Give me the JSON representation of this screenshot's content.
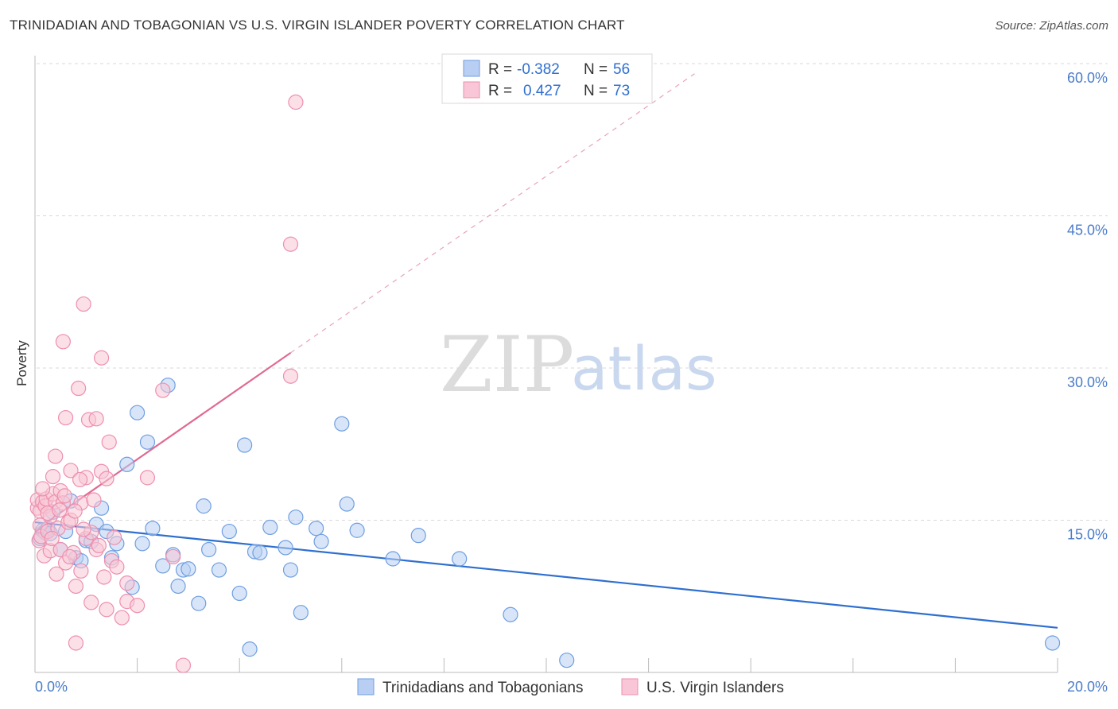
{
  "title": "TRINIDADIAN AND TOBAGONIAN VS U.S. VIRGIN ISLANDER POVERTY CORRELATION CHART",
  "source": "Source: ZipAtlas.com",
  "watermark": {
    "part1": "ZIP",
    "part2": "atlas"
  },
  "chart_data": {
    "type": "scatter",
    "ylabel": "Poverty",
    "xlim": [
      0,
      20
    ],
    "ylim": [
      0,
      60
    ],
    "y_ticks": [
      {
        "value": 15,
        "label": "15.0%"
      },
      {
        "value": 30,
        "label": "30.0%"
      },
      {
        "value": 45,
        "label": "45.0%"
      },
      {
        "value": 60,
        "label": "60.0%"
      }
    ],
    "x_tick_labels": {
      "min": "0.0%",
      "max": "20.0%"
    },
    "grid": true,
    "legend": {
      "rows": [
        {
          "r_label": "R =",
          "r_value": "-0.382",
          "n_label": "N =",
          "n_value": "56"
        },
        {
          "r_label": "R =",
          "r_value": "0.427",
          "n_label": "N =",
          "n_value": "73"
        }
      ]
    },
    "series": [
      {
        "name": "Trinidadians and Tobagonians",
        "color": "#6f9ee0",
        "fill": "#b8cff3",
        "trend": {
          "x0": 0,
          "y0": 14.8,
          "x1": 20,
          "y1": 4.4,
          "color": "#2f6fd0"
        },
        "points": [
          [
            0.1,
            13.2
          ],
          [
            0.15,
            14.0
          ],
          [
            0.2,
            13.8
          ],
          [
            0.25,
            14.2
          ],
          [
            0.3,
            13.7
          ],
          [
            0.35,
            15.8
          ],
          [
            0.5,
            12.1
          ],
          [
            0.6,
            13.9
          ],
          [
            0.7,
            16.9
          ],
          [
            0.8,
            11.3
          ],
          [
            0.9,
            11.0
          ],
          [
            1.0,
            13.0
          ],
          [
            1.1,
            12.9
          ],
          [
            1.2,
            14.6
          ],
          [
            1.3,
            16.2
          ],
          [
            1.4,
            13.9
          ],
          [
            1.5,
            11.3
          ],
          [
            1.6,
            12.7
          ],
          [
            1.8,
            20.5
          ],
          [
            1.9,
            8.4
          ],
          [
            2.0,
            25.6
          ],
          [
            2.1,
            12.7
          ],
          [
            2.2,
            22.7
          ],
          [
            2.3,
            14.2
          ],
          [
            2.5,
            10.5
          ],
          [
            2.6,
            28.3
          ],
          [
            2.7,
            11.6
          ],
          [
            2.8,
            8.5
          ],
          [
            2.9,
            10.1
          ],
          [
            3.0,
            10.2
          ],
          [
            3.2,
            6.8
          ],
          [
            3.3,
            16.4
          ],
          [
            3.4,
            12.1
          ],
          [
            3.6,
            10.1
          ],
          [
            3.8,
            13.9
          ],
          [
            4.0,
            7.8
          ],
          [
            4.1,
            22.4
          ],
          [
            4.2,
            2.3
          ],
          [
            4.3,
            11.9
          ],
          [
            4.4,
            11.8
          ],
          [
            4.6,
            14.3
          ],
          [
            4.9,
            12.3
          ],
          [
            5.0,
            10.1
          ],
          [
            5.1,
            15.3
          ],
          [
            5.2,
            5.9
          ],
          [
            5.5,
            14.2
          ],
          [
            5.6,
            12.9
          ],
          [
            6.0,
            24.5
          ],
          [
            6.1,
            16.6
          ],
          [
            6.3,
            14.0
          ],
          [
            7.0,
            11.2
          ],
          [
            7.5,
            13.5
          ],
          [
            8.3,
            11.2
          ],
          [
            9.3,
            5.7
          ],
          [
            10.4,
            1.2
          ],
          [
            19.9,
            2.9
          ]
        ]
      },
      {
        "name": "U.S. Virgin Islanders",
        "color": "#ee8fae",
        "fill": "#f8c6d6",
        "trend": {
          "x0": 0,
          "y0": 14.0,
          "x1": 5.0,
          "y1": 31.5,
          "color": "#e06a93",
          "dashed_extension_to": {
            "x": 12.9,
            "y": 59.0
          }
        },
        "points": [
          [
            0.05,
            16.2
          ],
          [
            0.05,
            17.0
          ],
          [
            0.08,
            13.0
          ],
          [
            0.1,
            15.9
          ],
          [
            0.1,
            14.5
          ],
          [
            0.12,
            13.4
          ],
          [
            0.15,
            16.8
          ],
          [
            0.18,
            11.5
          ],
          [
            0.2,
            16.4
          ],
          [
            0.22,
            17.1
          ],
          [
            0.25,
            13.9
          ],
          [
            0.3,
            15.4
          ],
          [
            0.3,
            12.0
          ],
          [
            0.35,
            19.3
          ],
          [
            0.35,
            17.6
          ],
          [
            0.4,
            21.3
          ],
          [
            0.4,
            16.8
          ],
          [
            0.42,
            9.7
          ],
          [
            0.45,
            14.2
          ],
          [
            0.5,
            12.1
          ],
          [
            0.5,
            17.9
          ],
          [
            0.55,
            32.6
          ],
          [
            0.55,
            16.7
          ],
          [
            0.6,
            25.1
          ],
          [
            0.6,
            10.8
          ],
          [
            0.65,
            14.8
          ],
          [
            0.7,
            19.9
          ],
          [
            0.7,
            15.0
          ],
          [
            0.75,
            11.8
          ],
          [
            0.8,
            8.5
          ],
          [
            0.8,
            2.9
          ],
          [
            0.85,
            28.0
          ],
          [
            0.9,
            16.7
          ],
          [
            0.9,
            10.0
          ],
          [
            0.95,
            36.3
          ],
          [
            1.0,
            19.2
          ],
          [
            1.0,
            13.2
          ],
          [
            1.05,
            24.9
          ],
          [
            1.1,
            13.8
          ],
          [
            1.1,
            6.9
          ],
          [
            1.15,
            17.0
          ],
          [
            1.2,
            25.0
          ],
          [
            1.2,
            12.1
          ],
          [
            1.3,
            19.8
          ],
          [
            1.3,
            31.0
          ],
          [
            1.35,
            9.4
          ],
          [
            1.4,
            19.1
          ],
          [
            1.4,
            6.2
          ],
          [
            1.45,
            22.7
          ],
          [
            1.5,
            11.0
          ],
          [
            1.6,
            10.4
          ],
          [
            1.7,
            5.4
          ],
          [
            1.8,
            8.8
          ],
          [
            1.8,
            7.0
          ],
          [
            2.0,
            6.6
          ],
          [
            2.2,
            19.2
          ],
          [
            2.5,
            27.8
          ],
          [
            2.7,
            11.4
          ],
          [
            2.9,
            0.7
          ],
          [
            5.0,
            29.2
          ],
          [
            5.0,
            42.2
          ],
          [
            5.1,
            56.2
          ],
          [
            0.25,
            15.7
          ],
          [
            0.33,
            13.2
          ],
          [
            0.48,
            16.0
          ],
          [
            0.58,
            17.4
          ],
          [
            0.68,
            11.4
          ],
          [
            0.78,
            15.9
          ],
          [
            0.88,
            19.0
          ],
          [
            1.25,
            12.5
          ],
          [
            1.55,
            13.3
          ],
          [
            0.15,
            18.1
          ],
          [
            0.95,
            14.1
          ]
        ]
      }
    ],
    "bottom_legend": [
      "Trinidadians and Tobagonians",
      "U.S. Virgin Islanders"
    ]
  }
}
